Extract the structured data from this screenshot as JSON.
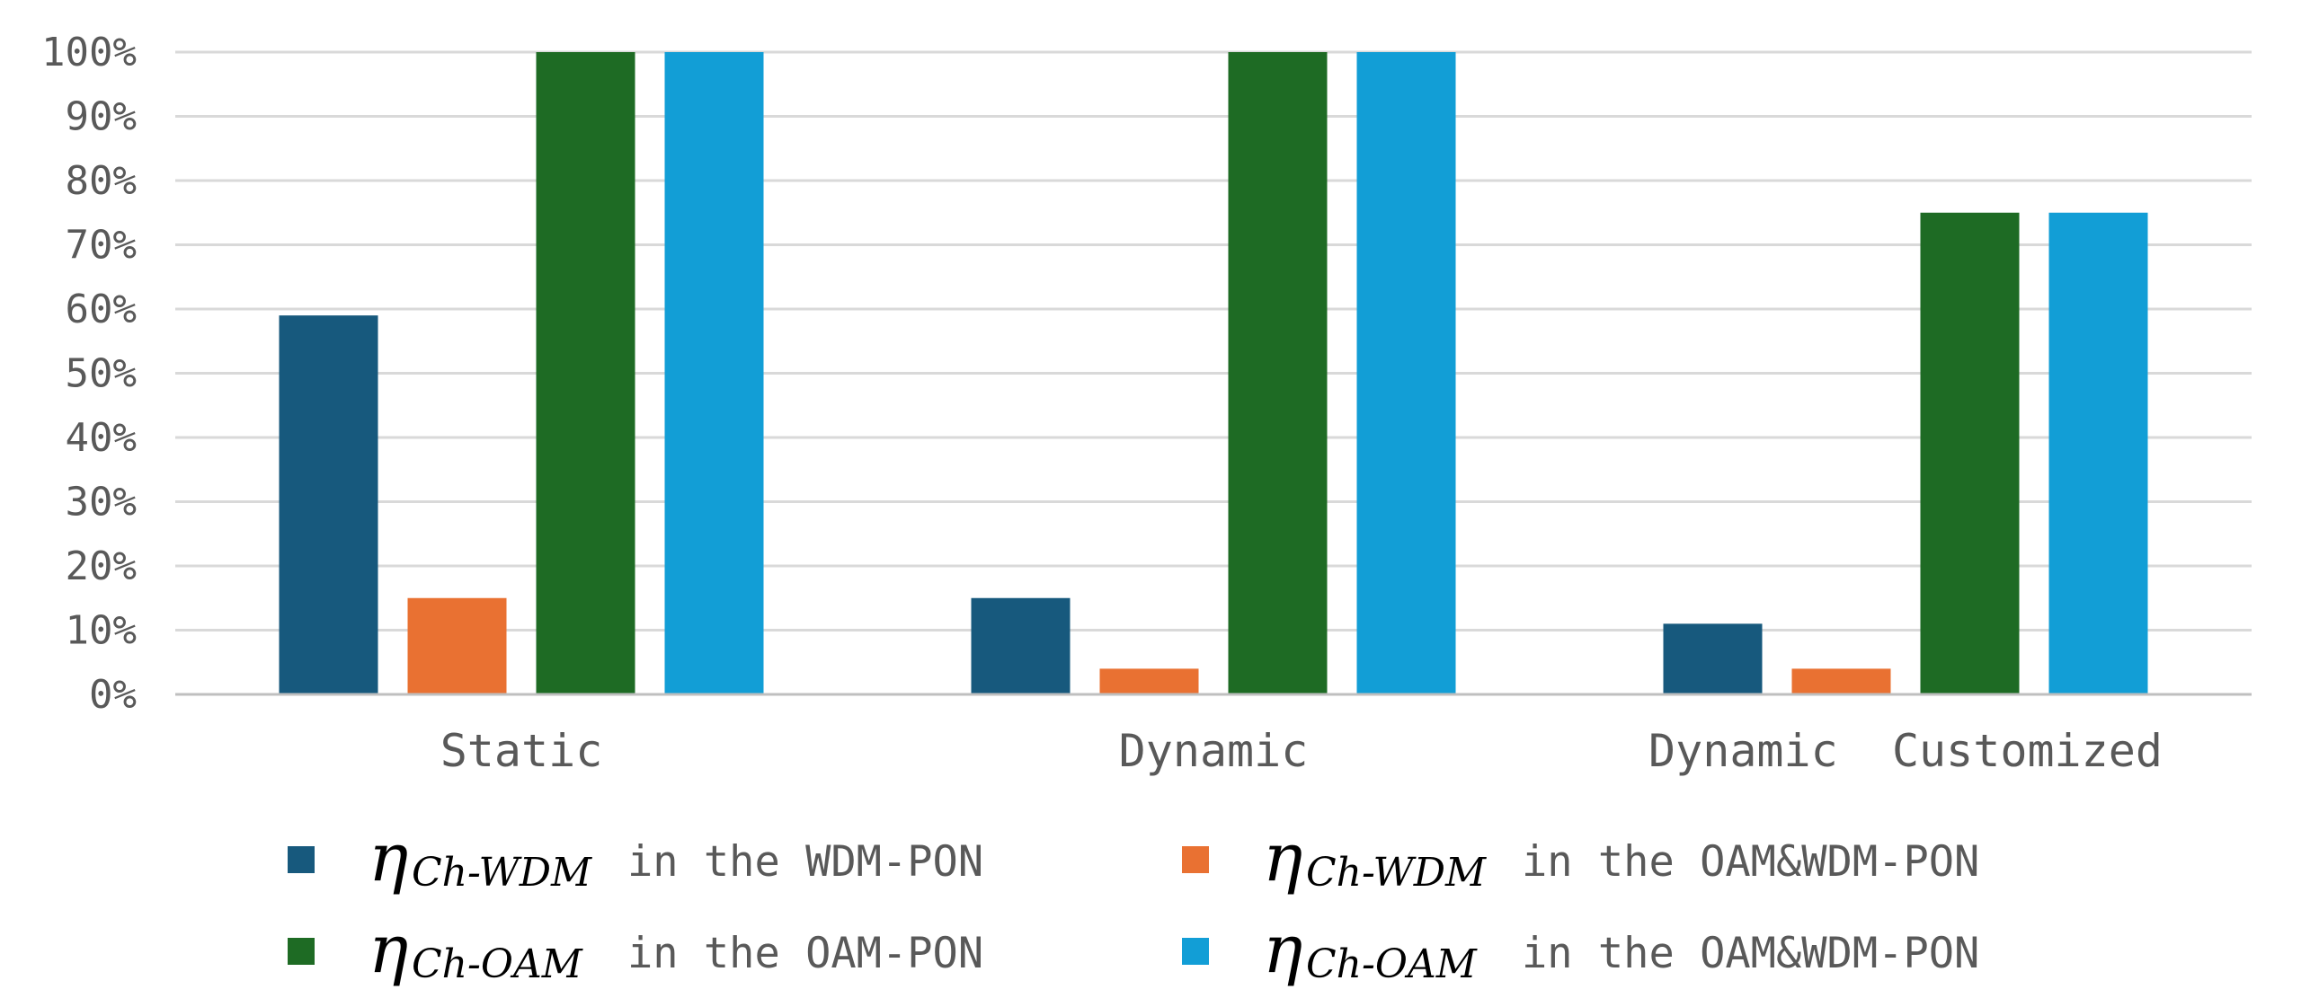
{
  "chart_data": {
    "type": "bar",
    "categories": [
      "Static",
      "Dynamic",
      "Dynamic  Customized"
    ],
    "yticks": [
      "0%",
      "10%",
      "20%",
      "30%",
      "40%",
      "50%",
      "60%",
      "70%",
      "80%",
      "90%",
      "100%"
    ],
    "ylim": [
      0,
      100
    ],
    "grid": true,
    "legend_position": "bottom",
    "series": [
      {
        "name_symbol": "η",
        "name_subscript": "Ch-WDM",
        "name_rest": "in the WDM-PON",
        "color": "#17597D",
        "values": [
          59,
          15,
          11
        ]
      },
      {
        "name_symbol": "η",
        "name_subscript": "Ch-WDM",
        "name_rest": "in the OAM&WDM-PON",
        "color": "#E97132",
        "values": [
          15,
          4,
          4
        ]
      },
      {
        "name_symbol": "η",
        "name_subscript": "Ch-OAM",
        "name_rest": "in the OAM-PON",
        "color": "#1E6B24",
        "values": [
          100,
          100,
          75
        ]
      },
      {
        "name_symbol": "η",
        "name_subscript": "Ch-OAM",
        "name_rest": "in the OAM&WDM-PON",
        "color": "#129ED6",
        "values": [
          100,
          100,
          75
        ]
      }
    ]
  }
}
